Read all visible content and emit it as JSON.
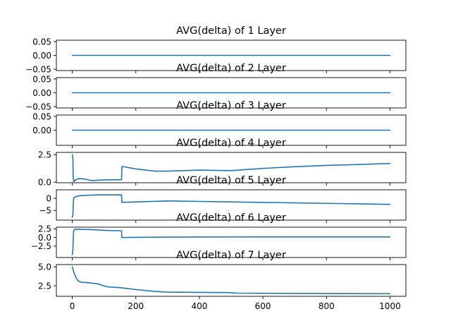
{
  "colors": {
    "line": "#1f77b4",
    "background": "#ffffff",
    "axes": "#000000"
  },
  "chart_data": [
    {
      "type": "line",
      "title": "AVG(delta) of 1 Layer",
      "xlim": [
        -50,
        1050
      ],
      "ylim": [
        -0.055,
        0.055
      ],
      "yticks": [
        0.05,
        0.0,
        -0.05
      ],
      "ytick_labels": [
        "0.05",
        "0.00",
        "−0.05"
      ],
      "show_xtick_labels": false,
      "series": [
        {
          "x": [
            0,
            1000
          ],
          "y": [
            0,
            0
          ]
        }
      ]
    },
    {
      "type": "line",
      "title": "AVG(delta) of 2 Layer",
      "xlim": [
        -50,
        1050
      ],
      "ylim": [
        -0.055,
        0.055
      ],
      "yticks": [
        0.05,
        0.0,
        -0.05
      ],
      "ytick_labels": [
        "0.05",
        "0.00",
        "−0.05"
      ],
      "show_xtick_labels": false,
      "series": [
        {
          "x": [
            0,
            1000
          ],
          "y": [
            0,
            0
          ]
        }
      ]
    },
    {
      "type": "line",
      "title": "AVG(delta) of 3 Layer",
      "xlim": [
        -50,
        1050
      ],
      "ylim": [
        -0.055,
        0.055
      ],
      "yticks": [
        0.05,
        0.0
      ],
      "ytick_labels": [
        "0.05",
        "0.00"
      ],
      "show_xtick_labels": false,
      "series": [
        {
          "x": [
            0,
            1000
          ],
          "y": [
            0,
            0
          ]
        }
      ]
    },
    {
      "type": "line",
      "title": "AVG(delta) of 4 Layer",
      "xlim": [
        -50,
        1050
      ],
      "ylim": [
        -0.05,
        2.7
      ],
      "yticks": [
        2.5,
        0.0
      ],
      "ytick_labels": [
        "2.5",
        "0.0"
      ],
      "show_xtick_labels": false,
      "series": [
        {
          "x": [
            0,
            2,
            3,
            5,
            10,
            20,
            40,
            60,
            80,
            100,
            130,
            155,
            156,
            158,
            200,
            260,
            300,
            400,
            480,
            500,
            600,
            700,
            800,
            900,
            1000
          ],
          "y": [
            2.5,
            2.2,
            0.4,
            0.05,
            0.2,
            0.33,
            0.28,
            0.15,
            0.18,
            0.2,
            0.22,
            0.22,
            1.4,
            1.42,
            1.2,
            1.0,
            1.0,
            1.1,
            1.06,
            1.05,
            1.25,
            1.4,
            1.52,
            1.6,
            1.7
          ]
        }
      ]
    },
    {
      "type": "line",
      "title": "AVG(delta) of 5 Layer",
      "xlim": [
        -50,
        1050
      ],
      "ylim": [
        -9,
        3.5
      ],
      "yticks": [
        0,
        -5
      ],
      "ytick_labels": [
        "0",
        "−5"
      ],
      "show_xtick_labels": false,
      "series": [
        {
          "x": [
            0,
            2,
            4,
            8,
            20,
            40,
            80,
            120,
            155,
            156,
            200,
            300,
            400,
            500,
            600,
            700,
            800,
            900,
            1000
          ],
          "y": [
            -7.8,
            -6.8,
            0.0,
            0.5,
            1.0,
            1.2,
            1.4,
            1.4,
            1.4,
            -1.7,
            -1.5,
            -1.1,
            -1.3,
            -1.5,
            -1.7,
            -1.9,
            -2.1,
            -2.3,
            -2.5
          ]
        }
      ]
    },
    {
      "type": "line",
      "title": "AVG(delta) of 6 Layer",
      "xlim": [
        -50,
        1050
      ],
      "ylim": [
        -5.8,
        3.0
      ],
      "yticks": [
        2.5,
        0.0,
        -2.5
      ],
      "ytick_labels": [
        "2.5",
        "0.0",
        "−2.5"
      ],
      "show_xtick_labels": false,
      "series": [
        {
          "x": [
            0,
            2,
            4,
            6,
            10,
            30,
            60,
            100,
            130,
            155,
            156,
            200,
            300,
            400,
            500,
            600,
            700,
            800,
            900,
            1000
          ],
          "y": [
            -5.0,
            -3.6,
            1.8,
            2.3,
            2.4,
            2.35,
            2.3,
            2.1,
            2.0,
            1.95,
            0.0,
            0.05,
            0.12,
            0.15,
            0.16,
            0.17,
            0.17,
            0.17,
            0.17,
            0.17
          ]
        }
      ]
    },
    {
      "type": "line",
      "title": "AVG(delta) of 7 Layer",
      "xlim": [
        -50,
        1050
      ],
      "ylim": [
        1.1,
        5.3
      ],
      "yticks": [
        5.0,
        2.5
      ],
      "ytick_labels": [
        "5.0",
        "2.5"
      ],
      "xticks": [
        0,
        200,
        400,
        600,
        800,
        1000
      ],
      "xtick_labels": [
        "0",
        "200",
        "400",
        "600",
        "800",
        "1000"
      ],
      "show_xtick_labels": true,
      "series": [
        {
          "x": [
            0,
            5,
            10,
            15,
            20,
            30,
            50,
            80,
            110,
            150,
            200,
            260,
            300,
            400,
            490,
            520,
            600,
            700,
            800,
            900,
            1000
          ],
          "y": [
            5.0,
            4.3,
            3.7,
            3.35,
            3.1,
            2.95,
            2.9,
            2.75,
            2.35,
            2.25,
            2.0,
            1.75,
            1.65,
            1.62,
            1.6,
            1.52,
            1.5,
            1.48,
            1.47,
            1.46,
            1.45
          ]
        }
      ]
    }
  ]
}
